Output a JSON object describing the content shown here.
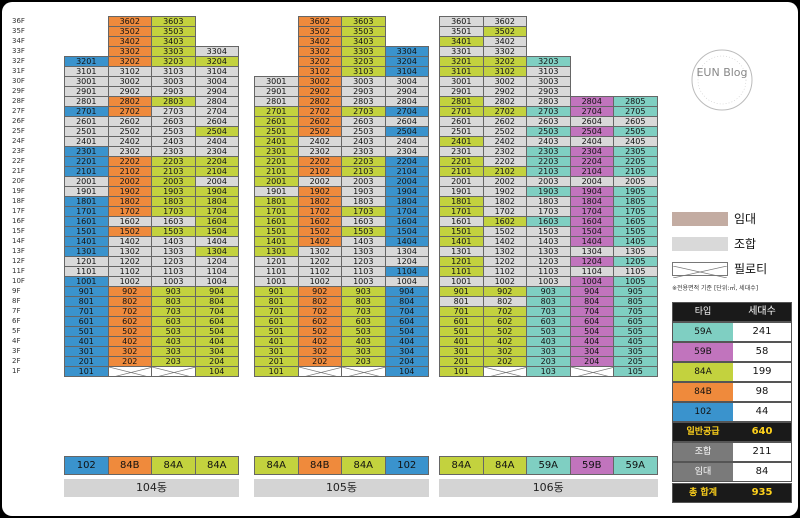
{
  "floors": [
    "36F",
    "35F",
    "34F",
    "33F",
    "32F",
    "31F",
    "30F",
    "29F",
    "28F",
    "27F",
    "26F",
    "25F",
    "24F",
    "23F",
    "22F",
    "21F",
    "20F",
    "19F",
    "18F",
    "17F",
    "16F",
    "15F",
    "14F",
    "13F",
    "12F",
    "11F",
    "10F",
    "9F",
    "8F",
    "7F",
    "6F",
    "5F",
    "4F",
    "3F",
    "2F",
    "1F"
  ],
  "buildings": [
    {
      "name": "104동",
      "top_floors": [
        32,
        36,
        36,
        33
      ],
      "line_types": [
        "102",
        "84B",
        "84A",
        "84A"
      ],
      "overrides": {
        "1201": "union",
        "1202": "union",
        "1203": "union",
        "1204": "union",
        "1302": "union",
        "1303": "union",
        "1402": "union",
        "1403": "union",
        "1404": "union",
        "1602": "union",
        "1603": "union",
        "1901": "union",
        "2001": "union",
        "2004": "union",
        "2302": "union",
        "2303": "union",
        "2304": "union",
        "2401": "union",
        "2402": "union",
        "2403": "union",
        "2404": "union",
        "2501": "union",
        "2502": "union",
        "2503": "union",
        "2601": "union",
        "2602": "union",
        "2603": "union",
        "2604": "union",
        "2703": "union",
        "2704": "union",
        "2801": "union",
        "2804": "union",
        "2901": "union",
        "2902": "union",
        "2903": "union",
        "2904": "union",
        "3001": "union",
        "3002": "union",
        "3003": "union",
        "3004": "union",
        "3101": "union",
        "3102": "union",
        "3103": "union",
        "3104": "union",
        "3304": "union",
        "1101": "union",
        "1102": "union",
        "1103": "union",
        "1104": "union",
        "1002": "union",
        "1003": "union",
        "1004": "union"
      },
      "pilotis": [
        "102",
        "103"
      ],
      "cells": {},
      "bottom_labels": [
        "102",
        "84B",
        "84A",
        "84A"
      ]
    },
    {
      "name": "105동",
      "top_floors": [
        30,
        36,
        36,
        33
      ],
      "line_types": [
        "84A",
        "84B",
        "84A",
        "102"
      ],
      "overrides": {
        "3001": "union",
        "3003": "union",
        "3004": "union",
        "2901": "union",
        "2903": "union",
        "2904": "union",
        "2801": "union",
        "2803": "union",
        "2804": "union",
        "2603": "union",
        "2604": "union",
        "2503": "union",
        "2402": "union",
        "2403": "union",
        "2404": "union",
        "2302": "union",
        "2303": "union",
        "2304": "union",
        "2002": "union",
        "2003": "union",
        "1901": "union",
        "1903": "union",
        "1803": "union",
        "1603": "union",
        "1403": "union",
        "1302": "union",
        "1303": "union",
        "1304": "union",
        "1201": "union",
        "1202": "union",
        "1203": "union",
        "1204": "union",
        "1101": "union",
        "1102": "union",
        "1103": "union",
        "1001": "union",
        "1002": "union",
        "1003": "union",
        "1004": "union"
      },
      "pilotis": [
        "102",
        "103"
      ],
      "bottom_labels": [
        "84A",
        "84B",
        "84A",
        "102"
      ]
    },
    {
      "name": "106동",
      "top_floors": [
        36,
        36,
        32,
        28,
        28
      ],
      "line_types": [
        "84A",
        "84A",
        "59A",
        "59B",
        "59A"
      ],
      "overrides": {
        "3601": "union",
        "3602": "union",
        "3501": "union",
        "3402": "union",
        "3301": "union",
        "3302": "union",
        "3103": "union",
        "3001": "union",
        "3002": "union",
        "3003": "union",
        "2901": "union",
        "2902": "union",
        "2903": "union",
        "2802": "union",
        "2803": "union",
        "2601": "union",
        "2602": "union",
        "2603": "union",
        "2604": "union",
        "2605": "union",
        "2501": "union",
        "2502": "union",
        "2402": "union",
        "2403": "union",
        "2404": "union",
        "2405": "union",
        "2301": "union",
        "2302": "union",
        "2202": "union",
        "2001": "union",
        "2002": "union",
        "2003": "union",
        "2004": "union",
        "2005": "union",
        "1901": "union",
        "1902": "union",
        "1802": "union",
        "1803": "union",
        "1702": "union",
        "1703": "union",
        "1601": "union",
        "1502": "union",
        "1503": "union",
        "1402": "union",
        "1403": "union",
        "1301": "union",
        "1302": "union",
        "1303": "union",
        "1304": "union",
        "1305": "union",
        "1202": "union",
        "1203": "union",
        "1102": "union",
        "1103": "union",
        "1104": "union",
        "1105": "union",
        "1001": "union",
        "1002": "union",
        "1003": "union",
        "801": "union",
        "802": "union"
      },
      "pilotis": [
        "102",
        "104"
      ],
      "bottom_labels": [
        "84A",
        "84A",
        "59A",
        "59B",
        "59A"
      ]
    }
  ],
  "logo_text": "EUN Blog",
  "legend": [
    {
      "label": "임대",
      "color": "#c3aca2"
    },
    {
      "label": "조합",
      "color": "#d9d9d9"
    },
    {
      "label": "필로티",
      "color": "#ffffff"
    }
  ],
  "note": "※전용면적 기준 [단위:㎡, 세대수]",
  "stats": {
    "header": [
      "타입",
      "세대수"
    ],
    "rows": [
      {
        "type": "59A",
        "count": "241",
        "color": "#7fcfc2"
      },
      {
        "type": "59B",
        "count": "58",
        "color": "#c174bd"
      },
      {
        "type": "84A",
        "count": "199",
        "color": "#c3d23e"
      },
      {
        "type": "84B",
        "count": "98",
        "color": "#ef8a3c"
      },
      {
        "type": "102",
        "count": "44",
        "color": "#3a93cd"
      }
    ],
    "general_supply": {
      "label": "일반공급",
      "value": "640"
    },
    "union": {
      "label": "조합",
      "value": "211"
    },
    "rental": {
      "label": "임대",
      "value": "84"
    },
    "total": {
      "label": "총 합계",
      "value": "935"
    }
  }
}
